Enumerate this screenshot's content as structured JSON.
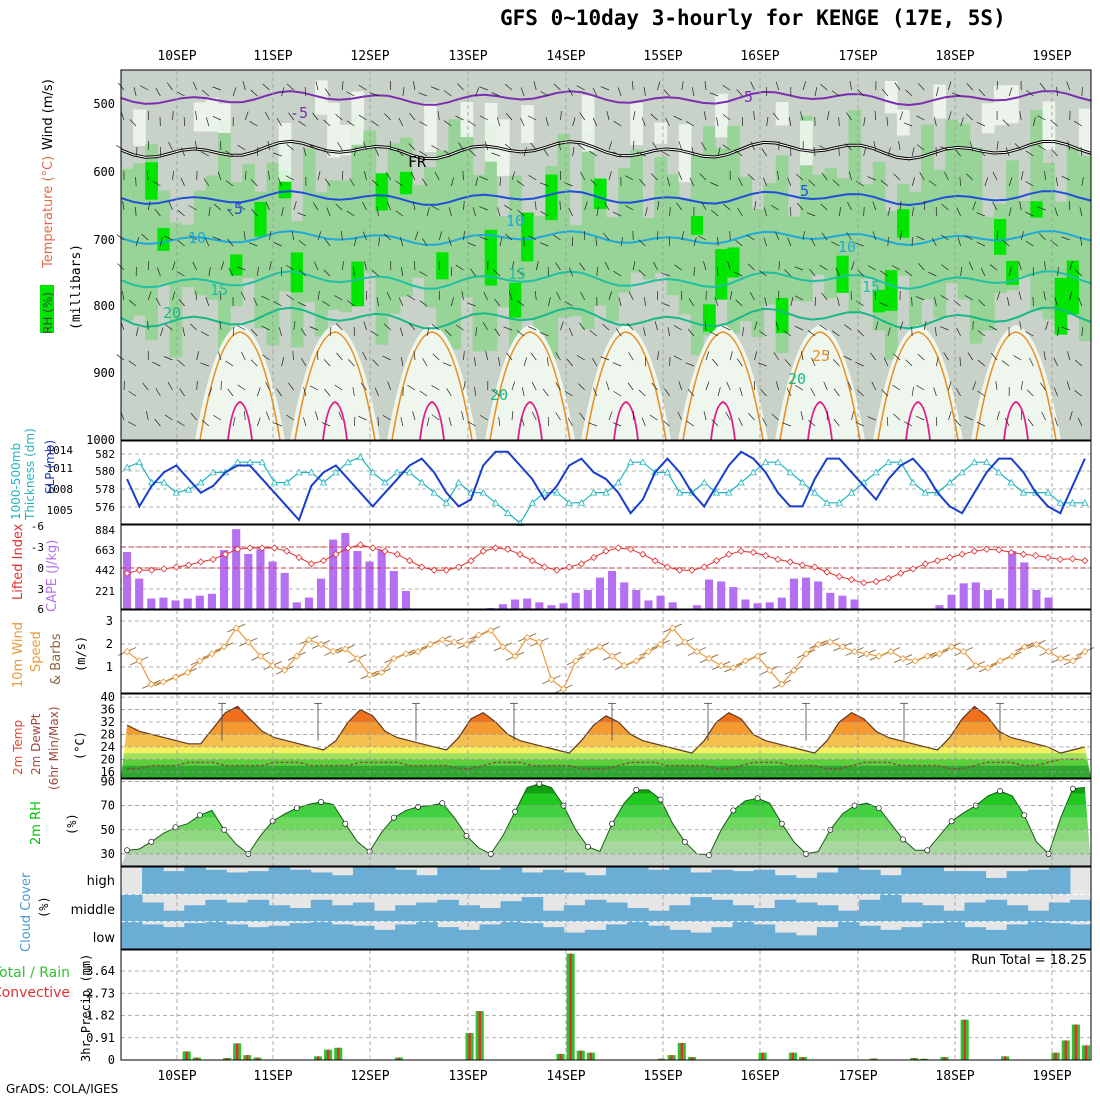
{
  "title": "GFS 0~10day 3-hourly for KENGE (17E, 5S)",
  "footer": "GrADS: COLA/IGES",
  "days": [
    "10SEP",
    "11SEP",
    "12SEP",
    "13SEP",
    "14SEP",
    "15SEP",
    "16SEP",
    "17SEP",
    "18SEP",
    "19SEP"
  ],
  "colors": {
    "bg_gray": "#c8d2c8",
    "green_light": "#eef6ee",
    "green_mid": "#8fd38f",
    "green_bright": "#00e600",
    "purple": "#7b2fb0",
    "blue": "#1e50d8",
    "cyan": "#20a8d8",
    "teal": "#20c0a0",
    "orange": "#e89020",
    "magenta": "#e0208a",
    "slp": "#1a3ccc",
    "thick": "#20b4c0",
    "cape": "#b470f0",
    "li": "#e03030",
    "wind": "#e89a3c",
    "rh2m": "#00c800",
    "cloud": "#6aaed6",
    "rain_total": "#30c030",
    "rain_conv": "#e03030"
  },
  "panels": {
    "upper": {
      "labels": [
        "RH (%)",
        "Temperature (°C)",
        "Wind (m/s)"
      ],
      "unit": "(millibars)",
      "y_ticks": [
        "500",
        "600",
        "700",
        "800",
        "900",
        "1000"
      ],
      "contour_labels": [
        "-5",
        "-5",
        "FR",
        "5",
        "-5",
        "10",
        "10",
        "10",
        "15",
        "15",
        "15",
        "20",
        "20",
        "20",
        "25"
      ]
    },
    "slp": {
      "labels": [
        "1000-500mb",
        "Thickness (dm)",
        "SLP (mb)"
      ],
      "left_ticks": [
        "582",
        "580",
        "578",
        "576"
      ],
      "right_ticks": [
        "1014",
        "1011",
        "1008",
        "1005"
      ]
    },
    "cape": {
      "labels": [
        "Lifted Index",
        "CAPE (J/kg)"
      ],
      "left_ticks": [
        "-6",
        "-3",
        "0",
        "3",
        "6"
      ],
      "right_ticks": [
        "884",
        "663",
        "442",
        "221"
      ]
    },
    "wind": {
      "labels": [
        "10m Wind",
        "Speed",
        "& Barbs",
        "(m/s)"
      ],
      "ticks": [
        "3",
        "2",
        "1"
      ]
    },
    "temp": {
      "labels": [
        "2m Temp",
        "2m DewPt",
        "(6hr Min/Max)",
        "(°C)"
      ],
      "ticks": [
        "40",
        "36",
        "32",
        "28",
        "24",
        "20",
        "16"
      ]
    },
    "rh": {
      "labels": [
        "2m RH",
        "(%)"
      ],
      "ticks": [
        "90",
        "70",
        "50",
        "30"
      ]
    },
    "cloud": {
      "labels": [
        "Cloud Cover",
        "(%)"
      ],
      "levels": [
        "high",
        "middle",
        "low"
      ]
    },
    "precip": {
      "labels": [
        "Total / Rain",
        "Convective",
        "3hr Precip (mm)"
      ],
      "ticks": [
        "3.64",
        "2.73",
        "1.82",
        "0.91",
        "0"
      ],
      "run_total": "Run Total = 18.25"
    }
  },
  "chart_data": [
    {
      "type": "line",
      "title": "1000-500mb Thickness (dm) / SLP (mb)",
      "series": [
        {
          "name": "SLP (mb)",
          "values": [
            1010,
            1006,
            1009,
            1011,
            1012,
            1010,
            1008,
            1009,
            1011,
            1012,
            1012,
            1010,
            1008,
            1006,
            1004,
            1009,
            1011,
            1012,
            1010,
            1008,
            1006,
            1008,
            1010,
            1012,
            1013,
            1011,
            1008,
            1006,
            1007,
            1012,
            1014,
            1014,
            1012,
            1010,
            1007,
            1009,
            1012,
            1013,
            1011,
            1010,
            1008,
            1005,
            1007,
            1011,
            1013,
            1011,
            1008,
            1006,
            1009,
            1012,
            1014,
            1013,
            1011,
            1008,
            1006,
            1006,
            1010,
            1013,
            1013,
            1011,
            1009,
            1007,
            1010,
            1012,
            1013,
            1011,
            1008,
            1006,
            1005,
            1008,
            1011,
            1013,
            1013,
            1011,
            1008,
            1006,
            1005,
            1009,
            1013
          ]
        },
        {
          "name": "Thickness (dm)",
          "values": [
            580.5,
            581,
            579,
            579,
            578,
            578.3,
            579,
            580,
            580,
            581,
            581,
            581,
            579,
            579,
            580,
            580,
            579,
            580,
            581,
            581.5,
            580,
            579,
            580,
            580,
            579,
            578,
            577,
            579,
            578,
            578,
            577,
            576,
            575,
            577,
            578,
            578,
            577,
            577,
            578,
            578,
            579,
            581,
            581,
            580,
            580,
            578,
            578,
            579,
            578,
            578,
            579,
            580,
            581,
            581,
            580,
            579,
            578,
            577,
            577,
            578,
            579,
            580,
            581,
            581,
            579,
            578,
            578,
            579,
            580,
            581,
            581,
            580,
            579,
            578,
            578,
            578,
            577,
            577,
            577
          ]
        }
      ]
    },
    {
      "type": "bar",
      "title": "CAPE (J/kg) / Lifted Index",
      "series": [
        {
          "name": "CAPE (J/kg)",
          "values": [
            600,
            320,
            110,
            120,
            90,
            110,
            140,
            160,
            620,
            840,
            580,
            630,
            500,
            380,
            70,
            120,
            320,
            730,
            800,
            610,
            500,
            620,
            400,
            190,
            0,
            0,
            0,
            0,
            0,
            0,
            10,
            50,
            100,
            110,
            70,
            40,
            60,
            170,
            200,
            330,
            400,
            280,
            200,
            90,
            140,
            70,
            0,
            40,
            310,
            290,
            230,
            100,
            60,
            70,
            120,
            320,
            330,
            290,
            170,
            140,
            100,
            0,
            0,
            0,
            0,
            0,
            0,
            40,
            150,
            270,
            280,
            200,
            110,
            610,
            490,
            200,
            120,
            0,
            0,
            0
          ]
        },
        {
          "name": "Lifted Index",
          "values": [
            1,
            0.5,
            0.5,
            0.3,
            0,
            -0.3,
            -0.8,
            -1.2,
            -2,
            -2.8,
            -3,
            -3,
            -3,
            -2.5,
            -1.5,
            -0.5,
            -1,
            -2,
            -3,
            -3.5,
            -3,
            -2.5,
            -2,
            -1,
            0,
            0.5,
            0.5,
            0,
            -1,
            -2.5,
            -3,
            -2.8,
            -2,
            -1,
            0,
            0.5,
            0,
            -0.5,
            -1.5,
            -2.5,
            -3,
            -2.8,
            -2,
            -1,
            0,
            0.5,
            0.5,
            0,
            -1,
            -2,
            -2.5,
            -2.3,
            -1.8,
            -1.2,
            -0.8,
            -0.3,
            0,
            0.8,
            1.5,
            2,
            2.5,
            2.3,
            1.8,
            1,
            0.3,
            -0.5,
            -1,
            -1.5,
            -2,
            -2.5,
            -2.8,
            -2.7,
            -2.3,
            -2,
            -1.8,
            -1.5,
            -1.2,
            -1.3,
            -1
          ]
        }
      ]
    },
    {
      "type": "line",
      "title": "10m Wind Speed (m/s)",
      "series": [
        {
          "name": "Speed",
          "values": [
            1.6,
            1.2,
            0.2,
            0.3,
            0.5,
            0.7,
            1.2,
            1.5,
            1.8,
            2.6,
            2.0,
            1.4,
            1.0,
            0.8,
            1.4,
            2.1,
            1.9,
            1.6,
            1.7,
            1.3,
            0.6,
            0.7,
            1.3,
            1.5,
            1.6,
            1.9,
            2.1,
            2.0,
            1.9,
            2.3,
            2.5,
            1.8,
            1.4,
            2.2,
            2.0,
            0.4,
            0.0,
            1.2,
            1.6,
            1.8,
            1.4,
            1.0,
            1.2,
            1.6,
            1.9,
            2.6,
            2.0,
            1.6,
            1.3,
            1.0,
            0.9,
            1.2,
            1.4,
            0.8,
            0.2,
            0.8,
            1.5,
            1.9,
            2.0,
            1.8,
            1.6,
            1.5,
            1.4,
            1.6,
            1.3,
            1.2,
            1.4,
            1.5,
            1.8,
            1.6,
            1.0,
            0.9,
            1.2,
            1.4,
            1.8,
            1.9,
            1.6,
            1.3,
            1.2,
            1.6
          ]
        }
      ]
    },
    {
      "type": "area",
      "title": "2m Temp / 2m DewPt (°C)",
      "series": [
        {
          "name": "2m Temp",
          "values": [
            31,
            29,
            28,
            27,
            26,
            25,
            25,
            30,
            35,
            37,
            33,
            29,
            27,
            26,
            25,
            24,
            23,
            26,
            32,
            36,
            34,
            29,
            27,
            26,
            25,
            24,
            23,
            27,
            33,
            35,
            32,
            28,
            26,
            25,
            24,
            23,
            22,
            26,
            31,
            34,
            32,
            28,
            26,
            25,
            24,
            23,
            22,
            26,
            32,
            35,
            33,
            28,
            26,
            25,
            24,
            23,
            22,
            26,
            32,
            35,
            33,
            29,
            27,
            26,
            25,
            24,
            23,
            27,
            33,
            37,
            34,
            29,
            27,
            26,
            25,
            24,
            22,
            23,
            24
          ]
        },
        {
          "name": "2m DewPt",
          "values": [
            17,
            17,
            18,
            18,
            18,
            19,
            19,
            19,
            18,
            18,
            18,
            18,
            19,
            19,
            19,
            18,
            18,
            18,
            18,
            19,
            19,
            19,
            19,
            18,
            18,
            18,
            18,
            17,
            17,
            18,
            19,
            19,
            19,
            18,
            18,
            18,
            18,
            17,
            17,
            17,
            18,
            19,
            19,
            19,
            18,
            18,
            18,
            18,
            17,
            17,
            18,
            19,
            19,
            19,
            18,
            18,
            18,
            17,
            17,
            18,
            19,
            19,
            19,
            18,
            18,
            18,
            18,
            17,
            17,
            18,
            19,
            19,
            19,
            18,
            18,
            19,
            20,
            20,
            20
          ]
        }
      ]
    },
    {
      "type": "area",
      "title": "2m RH (%)",
      "series": [
        {
          "name": "2m RH",
          "values": [
            33,
            34,
            40,
            47,
            52,
            55,
            62,
            66,
            50,
            38,
            30,
            45,
            57,
            63,
            68,
            71,
            73,
            71,
            55,
            40,
            32,
            48,
            60,
            66,
            69,
            70,
            72,
            60,
            45,
            35,
            30,
            45,
            65,
            85,
            88,
            85,
            70,
            50,
            36,
            32,
            55,
            72,
            83,
            83,
            75,
            55,
            40,
            30,
            29,
            50,
            66,
            74,
            76,
            72,
            55,
            40,
            30,
            32,
            50,
            63,
            70,
            72,
            68,
            55,
            42,
            33,
            33,
            45,
            57,
            64,
            70,
            78,
            82,
            78,
            62,
            40,
            30,
            60,
            84,
            85
          ]
        }
      ]
    },
    {
      "type": "bar",
      "title": "3hr Precip (mm)",
      "series": [
        {
          "name": "Total / Rain",
          "values": [
            0,
            0,
            0,
            0,
            0,
            0,
            0.35,
            0.1,
            0,
            0,
            0.08,
            0.68,
            0.2,
            0.1,
            0,
            0,
            0,
            0,
            0,
            0.15,
            0.42,
            0.5,
            0,
            0,
            0,
            0,
            0,
            0.1,
            0,
            0,
            0,
            0,
            0,
            0,
            1.1,
            2.0,
            0,
            0,
            0,
            0,
            0,
            0,
            0,
            0.25,
            4.35,
            0.38,
            0.3,
            0,
            0,
            0,
            0,
            0,
            0,
            0.05,
            0.2,
            0.7,
            0.12,
            0,
            0,
            0,
            0,
            0,
            0,
            0.3,
            0,
            0,
            0.3,
            0.12,
            0,
            0,
            0,
            0,
            0,
            0,
            0.06,
            0,
            0,
            0,
            0.08,
            0.05,
            0,
            0.12,
            0,
            1.65,
            0,
            0,
            0,
            0.15,
            0,
            0,
            0,
            0,
            0.3,
            0.8,
            1.45,
            0.6
          ]
        }
      ]
    },
    {
      "type": "heatmap",
      "title": "Cloud Cover (%)",
      "series": [
        {
          "name": "high",
          "values": [
            0,
            100,
            85,
            100,
            90,
            80,
            85,
            100,
            90,
            80,
            70,
            100,
            100,
            90,
            70,
            100,
            100,
            90,
            100,
            80,
            90,
            80,
            70,
            100,
            100,
            90,
            100,
            80,
            90,
            85,
            90,
            70,
            60,
            80,
            100,
            90,
            70,
            100,
            100,
            85,
            85,
            60,
            85,
            90,
            100,
            0
          ]
        },
        {
          "name": "middle",
          "values": [
            100,
            70,
            40,
            60,
            80,
            70,
            80,
            60,
            50,
            80,
            60,
            70,
            40,
            60,
            70,
            80,
            60,
            50,
            75,
            90,
            40,
            60,
            80,
            70,
            50,
            40,
            60,
            90,
            80,
            60,
            50,
            80,
            70,
            60,
            40,
            80,
            100,
            70,
            60,
            40,
            70,
            80,
            60,
            40,
            70,
            80
          ]
        },
        {
          "name": "low",
          "values": [
            100,
            90,
            80,
            95,
            100,
            90,
            80,
            85,
            95,
            100,
            90,
            85,
            70,
            90,
            100,
            80,
            70,
            90,
            100,
            95,
            80,
            60,
            70,
            90,
            100,
            85,
            70,
            60,
            80,
            100,
            90,
            60,
            50,
            80,
            100,
            85,
            70,
            80,
            95,
            100,
            80,
            70,
            90,
            100,
            95,
            90
          ]
        }
      ]
    }
  ]
}
